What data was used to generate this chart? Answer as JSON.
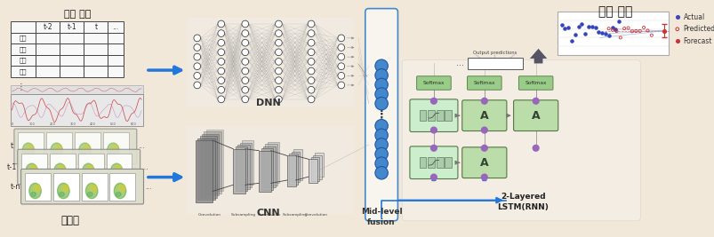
{
  "bg_color": "#f2e8da",
  "border_color": "#c8b89a",
  "title_top_left": "관측 자료",
  "title_top_right": "기상 예측",
  "title_bottom_left": "일기도",
  "label_dnn": "DNN",
  "label_cnn": "CNN",
  "label_mid_fusion": "Mid-level\nfusion",
  "label_lstm": "2-Layered\nLSTM(RNN)",
  "table_rows": [
    "온도",
    "습도",
    "풍속",
    "기압"
  ],
  "table_cols": [
    "t-2",
    "t-1",
    "t",
    "..."
  ],
  "weather_labels": [
    "t-n",
    "t-1",
    "t"
  ],
  "legend_items": [
    "Actual",
    "Predicted",
    "Forecast"
  ],
  "legend_colors_filled": [
    "#4444bb",
    "#cc3333",
    "#cc3333"
  ],
  "softmax_color": "#99cc88",
  "softmax_edge": "#557744",
  "lstm_cell_color": "#bbddaa",
  "lstm_detail_color": "#cceecc",
  "fusion_color": "#4488cc",
  "fusion_edge": "#2255aa",
  "arrow_color": "#2277dd",
  "dnn_node_color": "white",
  "dnn_node_edge": "#444444",
  "table_border": "#333333",
  "text_color": "#111111",
  "cnn_color": "#aaaaaa",
  "cnn_dark": "#888888",
  "conn_dot_color": "#9966bb",
  "gray_arrow": "#555566"
}
